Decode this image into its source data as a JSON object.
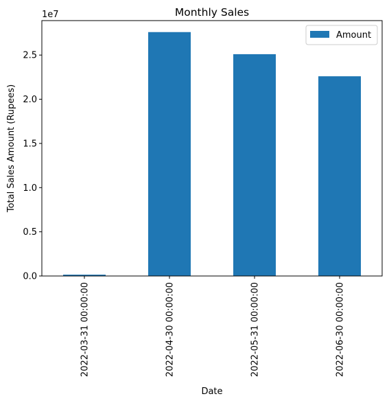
{
  "chart_data": {
    "type": "bar",
    "title": "Monthly Sales",
    "xlabel": "Date",
    "ylabel": "Total Sales Amount (Rupees)",
    "y_offset_label": "1e7",
    "y_scale": 10000000,
    "ylim": [
      0,
      28900000
    ],
    "yticks": [
      0,
      5000000,
      10000000,
      15000000,
      20000000,
      25000000
    ],
    "ytick_labels": [
      "0.0",
      "0.5",
      "1.0",
      "1.5",
      "2.0",
      "2.5"
    ],
    "categories": [
      "2022-03-31 00:00:00",
      "2022-04-30 00:00:00",
      "2022-05-31 00:00:00",
      "2022-06-30 00:00:00"
    ],
    "series": [
      {
        "name": "Amount",
        "color": "#1f77b4",
        "values": [
          150000,
          27600000,
          25100000,
          22600000
        ]
      }
    ],
    "legend": {
      "placement": "top-right"
    },
    "grid": false
  }
}
